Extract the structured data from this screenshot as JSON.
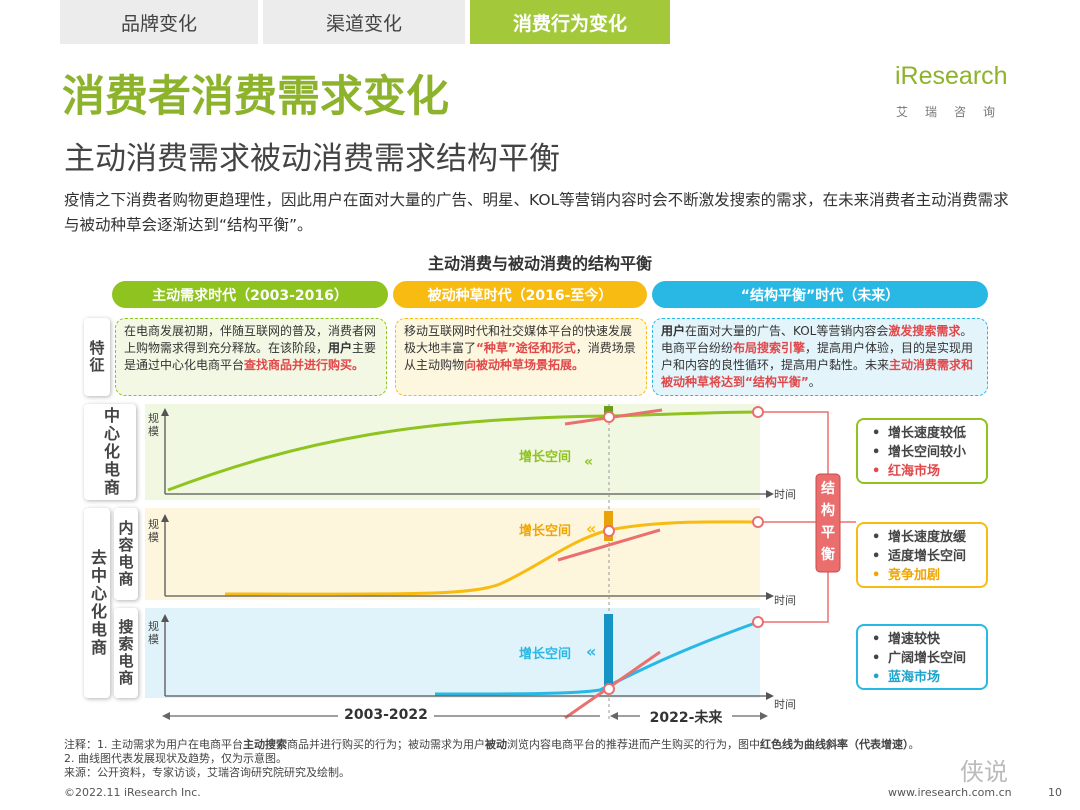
{
  "tabs": [
    "品牌变化",
    "渠道变化",
    "消费行为变化"
  ],
  "logo": {
    "name": "iResearch",
    "sub": "艾瑞咨询"
  },
  "title": "消费者消费需求变化",
  "subtitle": "主动消费需求被动消费需求结构平衡",
  "intro": "疫情之下消费者购物更趋理性，因此用户在面对大量的广告、明星、KOL等营销内容时会不断激发搜索的需求，在未来消费者主动消费需求与被动种草会逐渐达到“结构平衡”。",
  "chart_title": "主动消费与被动消费的结构平衡",
  "eras": [
    "主动需求时代（2003-2016）",
    "被动种草时代（2016-至今）",
    "“结构平衡”时代（未来）"
  ],
  "feature_label": "特征",
  "box1": {
    "p1": "在电商发展初期，伴随互联网的普及，消费者网上购物需求得到充分释放。在该阶段，",
    "p2": "用户",
    "p3": "主要是通过中心化电商平台",
    "p4": "查找商品并进行购买。"
  },
  "box2": {
    "p1": "移动互联网时代和社交媒体平台的快速发展极大地丰富了",
    "p2": "“种草”途径和形式",
    "p3": "，消费场景从主动购物",
    "p4": "向被动种草场景拓展。"
  },
  "box3": {
    "p1": "用户",
    "p2": "在面对大量的广告、KOL等营销内容会",
    "p3": "激发搜索需求",
    "p4": "。电商平台纷纷",
    "p5": "布局搜索引擎",
    "p6": "，提高用户体验，目的是实现用户和内容的良性循环，提高用户黏性。未来",
    "p7": "主动消费需求和被动种草将达到“结构平衡”",
    "p8": "。"
  },
  "row_labels": {
    "central": "中心化电商",
    "decentral": "去中心化电商",
    "content": "内容电商",
    "search": "搜索电商"
  },
  "axis": {
    "y": "规模",
    "x": "时间"
  },
  "growth_label": "增长空间",
  "balance_label": "结构平衡",
  "outcomes": {
    "central": [
      "增长速度较低",
      "增长空间较小",
      "红海市场"
    ],
    "content": [
      "增长速度放缓",
      "适度增长空间",
      "竞争加剧"
    ],
    "search": [
      "增速较快",
      "广阔增长空间",
      "蓝海市场"
    ]
  },
  "timeline": {
    "left": "2003-2022",
    "right": "2022-未来"
  },
  "notes": {
    "n1a": "注释：1. 主动需求为用户在电商平台",
    "n1b": "主动搜索",
    "n1c": "商品并进行购买的行为；被动需求为用户",
    "n1d": "被动",
    "n1e": "浏览内容电商平台的推荐进而产生购买的行为，图中",
    "n1f": "红色线为曲线斜率（代表增速）",
    "n1g": "。",
    "n2": "2. 曲线图代表发展现状及趋势，仅为示意图。",
    "source": "来源：公开资料，专家访谈，艾瑞咨询研究院研究及绘制。"
  },
  "copyright": "©2022.11 iResearch Inc.",
  "website": "www.iresearch.com.cn",
  "page_number": "10",
  "watermark": "侠说",
  "colors": {
    "green": "#8fc31f",
    "yellow": "#f8bb11",
    "blue": "#29b8e4",
    "red": "#e0484a"
  }
}
